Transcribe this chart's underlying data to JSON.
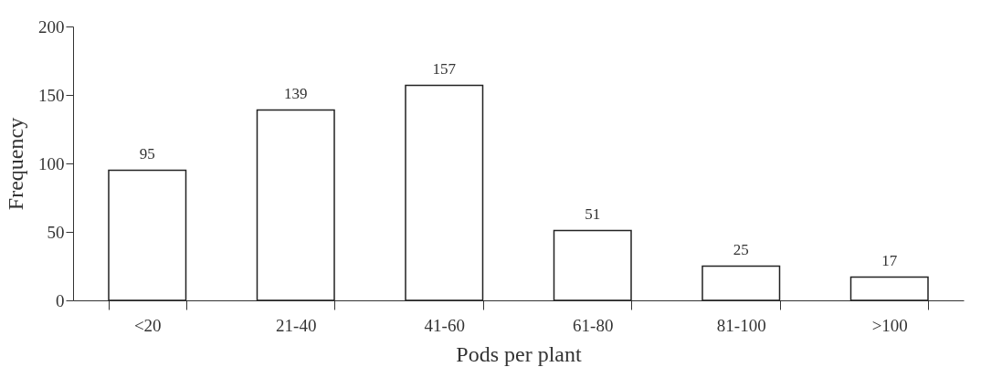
{
  "chart_data": {
    "type": "bar",
    "xlabel": "Pods per plant",
    "ylabel": "Frequency",
    "categories": [
      "<20",
      "21-40",
      "41-60",
      "61-80",
      "81-100",
      ">100"
    ],
    "values": [
      95,
      139,
      157,
      51,
      25,
      17
    ],
    "color": "#ffffff",
    "ylim": [
      0,
      200
    ],
    "yticks": [
      0,
      50,
      100,
      150,
      200
    ],
    "grid": false,
    "data_labels": true
  }
}
